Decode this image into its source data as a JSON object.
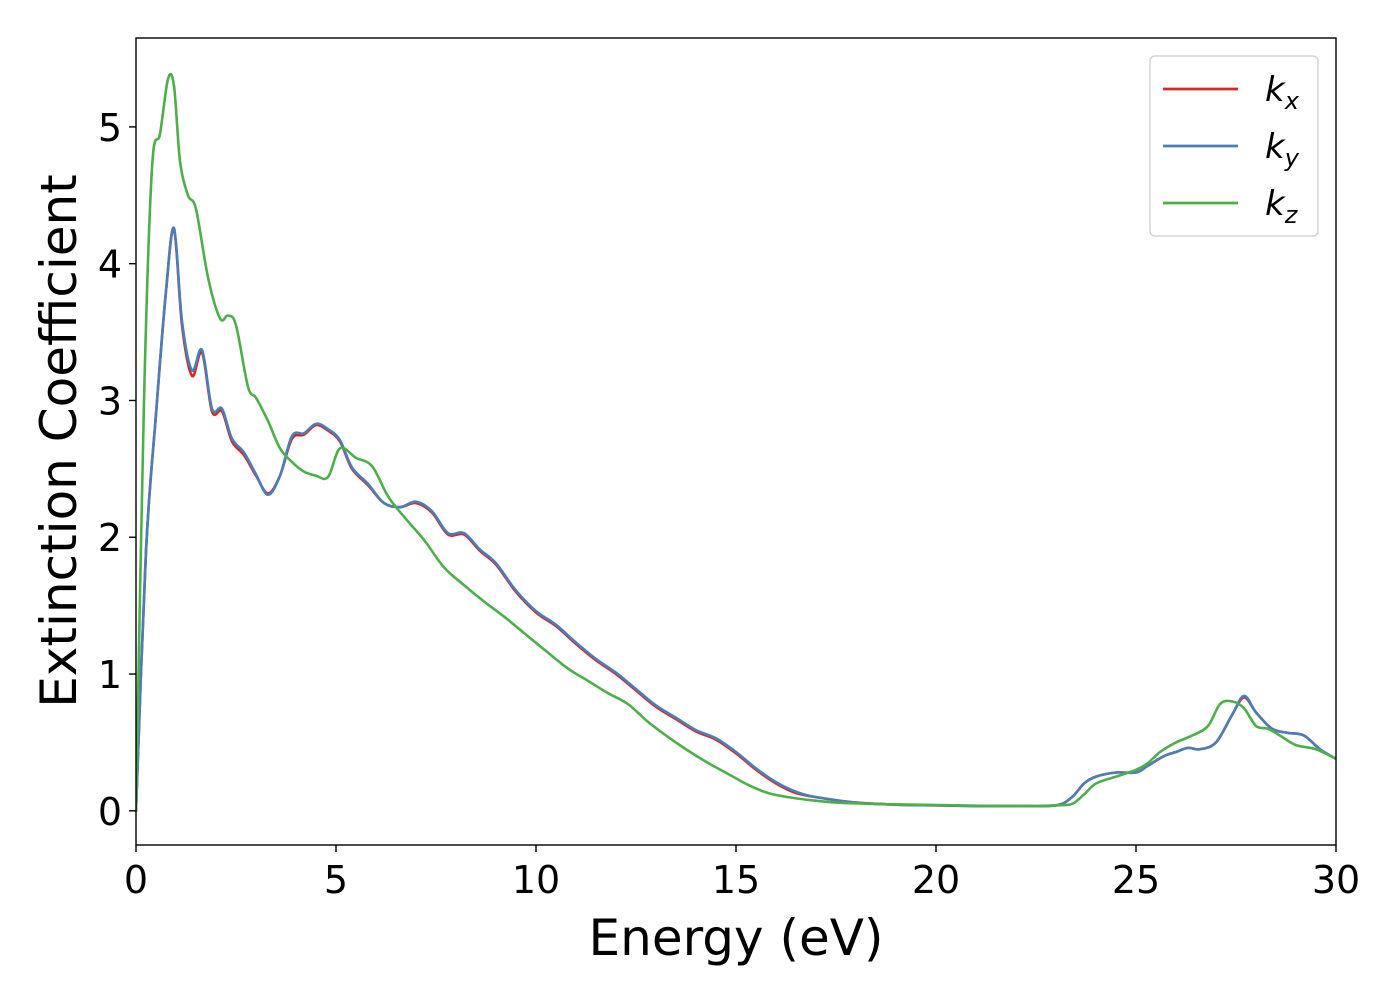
{
  "chart_data": {
    "type": "line",
    "title": "",
    "xlabel": "Energy (eV)",
    "ylabel": "Extinction Coefficient",
    "xlim": [
      0,
      30
    ],
    "ylim": [
      -0.25,
      5.65
    ],
    "xticks": [
      0,
      5,
      10,
      15,
      20,
      25,
      30
    ],
    "yticks": [
      0,
      1,
      2,
      3,
      4,
      5
    ],
    "grid": false,
    "legend_position": "top-right",
    "series": [
      {
        "name": "k",
        "sub": "x",
        "color": "#d62728",
        "x": [
          0,
          0.25,
          0.5,
          0.75,
          0.95,
          1.15,
          1.4,
          1.65,
          1.9,
          2.15,
          2.4,
          2.7,
          3.0,
          3.3,
          3.6,
          3.9,
          4.2,
          4.5,
          4.8,
          5.1,
          5.4,
          5.8,
          6.2,
          6.6,
          7.0,
          7.4,
          7.8,
          8.2,
          8.6,
          9.0,
          9.5,
          10.0,
          10.5,
          11.0,
          11.5,
          12.0,
          12.5,
          13.0,
          13.5,
          14.0,
          14.5,
          15.0,
          15.5,
          16.0,
          16.5,
          17.0,
          18.0,
          19.0,
          20.0,
          21.0,
          22.0,
          23.0,
          23.4,
          23.7,
          24.0,
          24.5,
          25.0,
          25.3,
          25.7,
          26.0,
          26.3,
          26.6,
          27.0,
          27.4,
          27.7,
          28.0,
          28.4,
          28.8,
          29.2,
          29.6,
          30.0
        ],
        "y": [
          0,
          1.9,
          2.9,
          3.8,
          4.25,
          3.55,
          3.18,
          3.35,
          2.92,
          2.92,
          2.7,
          2.6,
          2.45,
          2.32,
          2.45,
          2.72,
          2.75,
          2.82,
          2.78,
          2.7,
          2.5,
          2.38,
          2.25,
          2.22,
          2.25,
          2.18,
          2.02,
          2.02,
          1.9,
          1.8,
          1.6,
          1.45,
          1.35,
          1.22,
          1.1,
          1.0,
          0.88,
          0.76,
          0.67,
          0.58,
          0.52,
          0.42,
          0.3,
          0.2,
          0.13,
          0.1,
          0.06,
          0.045,
          0.04,
          0.035,
          0.035,
          0.04,
          0.1,
          0.2,
          0.25,
          0.28,
          0.28,
          0.33,
          0.4,
          0.43,
          0.46,
          0.45,
          0.5,
          0.7,
          0.83,
          0.72,
          0.6,
          0.57,
          0.55,
          0.45,
          0.38
        ]
      },
      {
        "name": "k",
        "sub": "y",
        "color": "#4a7eb9",
        "x": [
          0,
          0.25,
          0.5,
          0.75,
          0.95,
          1.15,
          1.4,
          1.65,
          1.9,
          2.15,
          2.4,
          2.7,
          3.0,
          3.3,
          3.6,
          3.9,
          4.2,
          4.5,
          4.8,
          5.1,
          5.4,
          5.8,
          6.2,
          6.6,
          7.0,
          7.4,
          7.8,
          8.2,
          8.6,
          9.0,
          9.5,
          10.0,
          10.5,
          11.0,
          11.5,
          12.0,
          12.5,
          13.0,
          13.5,
          14.0,
          14.5,
          15.0,
          15.5,
          16.0,
          16.5,
          17.0,
          18.0,
          19.0,
          20.0,
          21.0,
          22.0,
          23.0,
          23.4,
          23.7,
          24.0,
          24.5,
          25.0,
          25.3,
          25.7,
          26.0,
          26.3,
          26.6,
          27.0,
          27.4,
          27.7,
          28.0,
          28.4,
          28.8,
          29.2,
          29.6,
          30.0
        ],
        "y": [
          0,
          1.9,
          2.9,
          3.8,
          4.26,
          3.58,
          3.22,
          3.37,
          2.94,
          2.94,
          2.72,
          2.62,
          2.46,
          2.31,
          2.45,
          2.74,
          2.76,
          2.83,
          2.79,
          2.71,
          2.51,
          2.39,
          2.25,
          2.22,
          2.26,
          2.19,
          2.03,
          2.03,
          1.91,
          1.81,
          1.61,
          1.46,
          1.36,
          1.23,
          1.11,
          1.01,
          0.89,
          0.77,
          0.68,
          0.59,
          0.53,
          0.43,
          0.31,
          0.21,
          0.14,
          0.1,
          0.06,
          0.045,
          0.04,
          0.035,
          0.035,
          0.04,
          0.1,
          0.2,
          0.25,
          0.28,
          0.28,
          0.33,
          0.4,
          0.43,
          0.46,
          0.45,
          0.5,
          0.7,
          0.84,
          0.72,
          0.6,
          0.57,
          0.55,
          0.45,
          0.38
        ]
      },
      {
        "name": "k",
        "sub": "z",
        "color": "#4daf4a",
        "x": [
          0,
          0.2,
          0.4,
          0.6,
          0.8,
          0.95,
          1.1,
          1.3,
          1.5,
          1.8,
          2.1,
          2.3,
          2.5,
          2.8,
          3.0,
          3.3,
          3.6,
          3.9,
          4.2,
          4.5,
          4.8,
          5.1,
          5.5,
          5.9,
          6.3,
          6.7,
          7.2,
          7.7,
          8.2,
          8.7,
          9.2,
          9.7,
          10.2,
          10.8,
          11.3,
          11.8,
          12.3,
          12.8,
          13.3,
          13.8,
          14.3,
          14.8,
          15.3,
          15.8,
          16.3,
          16.8,
          17.5,
          18.5,
          19.5,
          20.5,
          21.5,
          22.5,
          23.0,
          23.4,
          23.7,
          24.0,
          24.5,
          25.0,
          25.3,
          25.6,
          26.0,
          26.4,
          26.8,
          27.1,
          27.4,
          27.7,
          28.0,
          28.3,
          28.6,
          29.0,
          29.5,
          30.0
        ],
        "y": [
          0,
          3.0,
          4.7,
          4.95,
          5.35,
          5.3,
          4.75,
          4.5,
          4.4,
          3.9,
          3.6,
          3.62,
          3.55,
          3.1,
          3.02,
          2.85,
          2.65,
          2.55,
          2.48,
          2.45,
          2.44,
          2.65,
          2.58,
          2.52,
          2.3,
          2.15,
          1.98,
          1.78,
          1.65,
          1.53,
          1.42,
          1.3,
          1.18,
          1.04,
          0.95,
          0.86,
          0.78,
          0.65,
          0.54,
          0.44,
          0.35,
          0.27,
          0.19,
          0.13,
          0.1,
          0.08,
          0.06,
          0.05,
          0.045,
          0.04,
          0.035,
          0.035,
          0.04,
          0.05,
          0.12,
          0.2,
          0.25,
          0.3,
          0.35,
          0.43,
          0.5,
          0.55,
          0.62,
          0.78,
          0.8,
          0.75,
          0.62,
          0.6,
          0.55,
          0.48,
          0.45,
          0.38
        ]
      }
    ]
  }
}
